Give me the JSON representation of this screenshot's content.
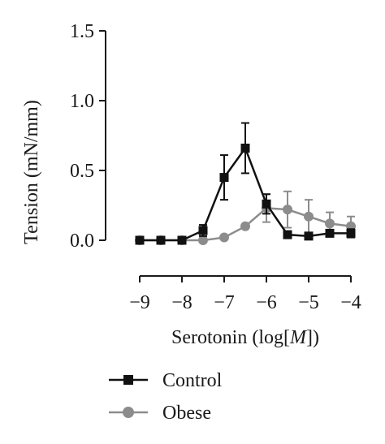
{
  "chart_data": {
    "type": "line",
    "title": "",
    "xlabel": "Serotonin (log[M])",
    "ylabel": "Tension (mN/mm)",
    "xlim": [
      -9,
      -4
    ],
    "ylim": [
      0,
      1.5
    ],
    "x_ticks": [
      -9,
      -8,
      -7,
      -6,
      -5,
      -4
    ],
    "x_tick_labels": [
      "−9",
      "−8",
      "−7",
      "−6",
      "−5",
      "−4"
    ],
    "y_ticks": [
      0,
      0.5,
      1.0,
      1.5
    ],
    "y_tick_labels": [
      "0.0",
      "0.5",
      "1.0",
      "1.5"
    ],
    "grid": false,
    "legend": "bottom-left",
    "series": [
      {
        "name": "Control",
        "color": "#111111",
        "marker": "square",
        "x": [
          -9,
          -8.5,
          -8,
          -7.5,
          -7,
          -6.5,
          -6,
          -5.5,
          -5,
          -4.5,
          -4
        ],
        "y": [
          0.0,
          0.0,
          0.0,
          0.07,
          0.45,
          0.66,
          0.26,
          0.04,
          0.03,
          0.05,
          0.05
        ],
        "error": [
          0.0,
          0.0,
          0.0,
          0.04,
          0.16,
          0.18,
          0.07,
          0.02,
          0.02,
          0.02,
          0.03
        ]
      },
      {
        "name": "Obese",
        "color": "#8c8c8c",
        "marker": "circle",
        "x": [
          -9,
          -8.5,
          -8,
          -7.5,
          -7,
          -6.5,
          -6,
          -5.5,
          -5,
          -4.5,
          -4
        ],
        "y": [
          0.0,
          0.0,
          0.0,
          0.0,
          0.02,
          0.1,
          0.23,
          0.22,
          0.17,
          0.12,
          0.1
        ],
        "error": [
          0.0,
          0.0,
          0.0,
          0.0,
          0.0,
          0.0,
          0.1,
          0.13,
          0.12,
          0.08,
          0.07
        ]
      }
    ]
  }
}
